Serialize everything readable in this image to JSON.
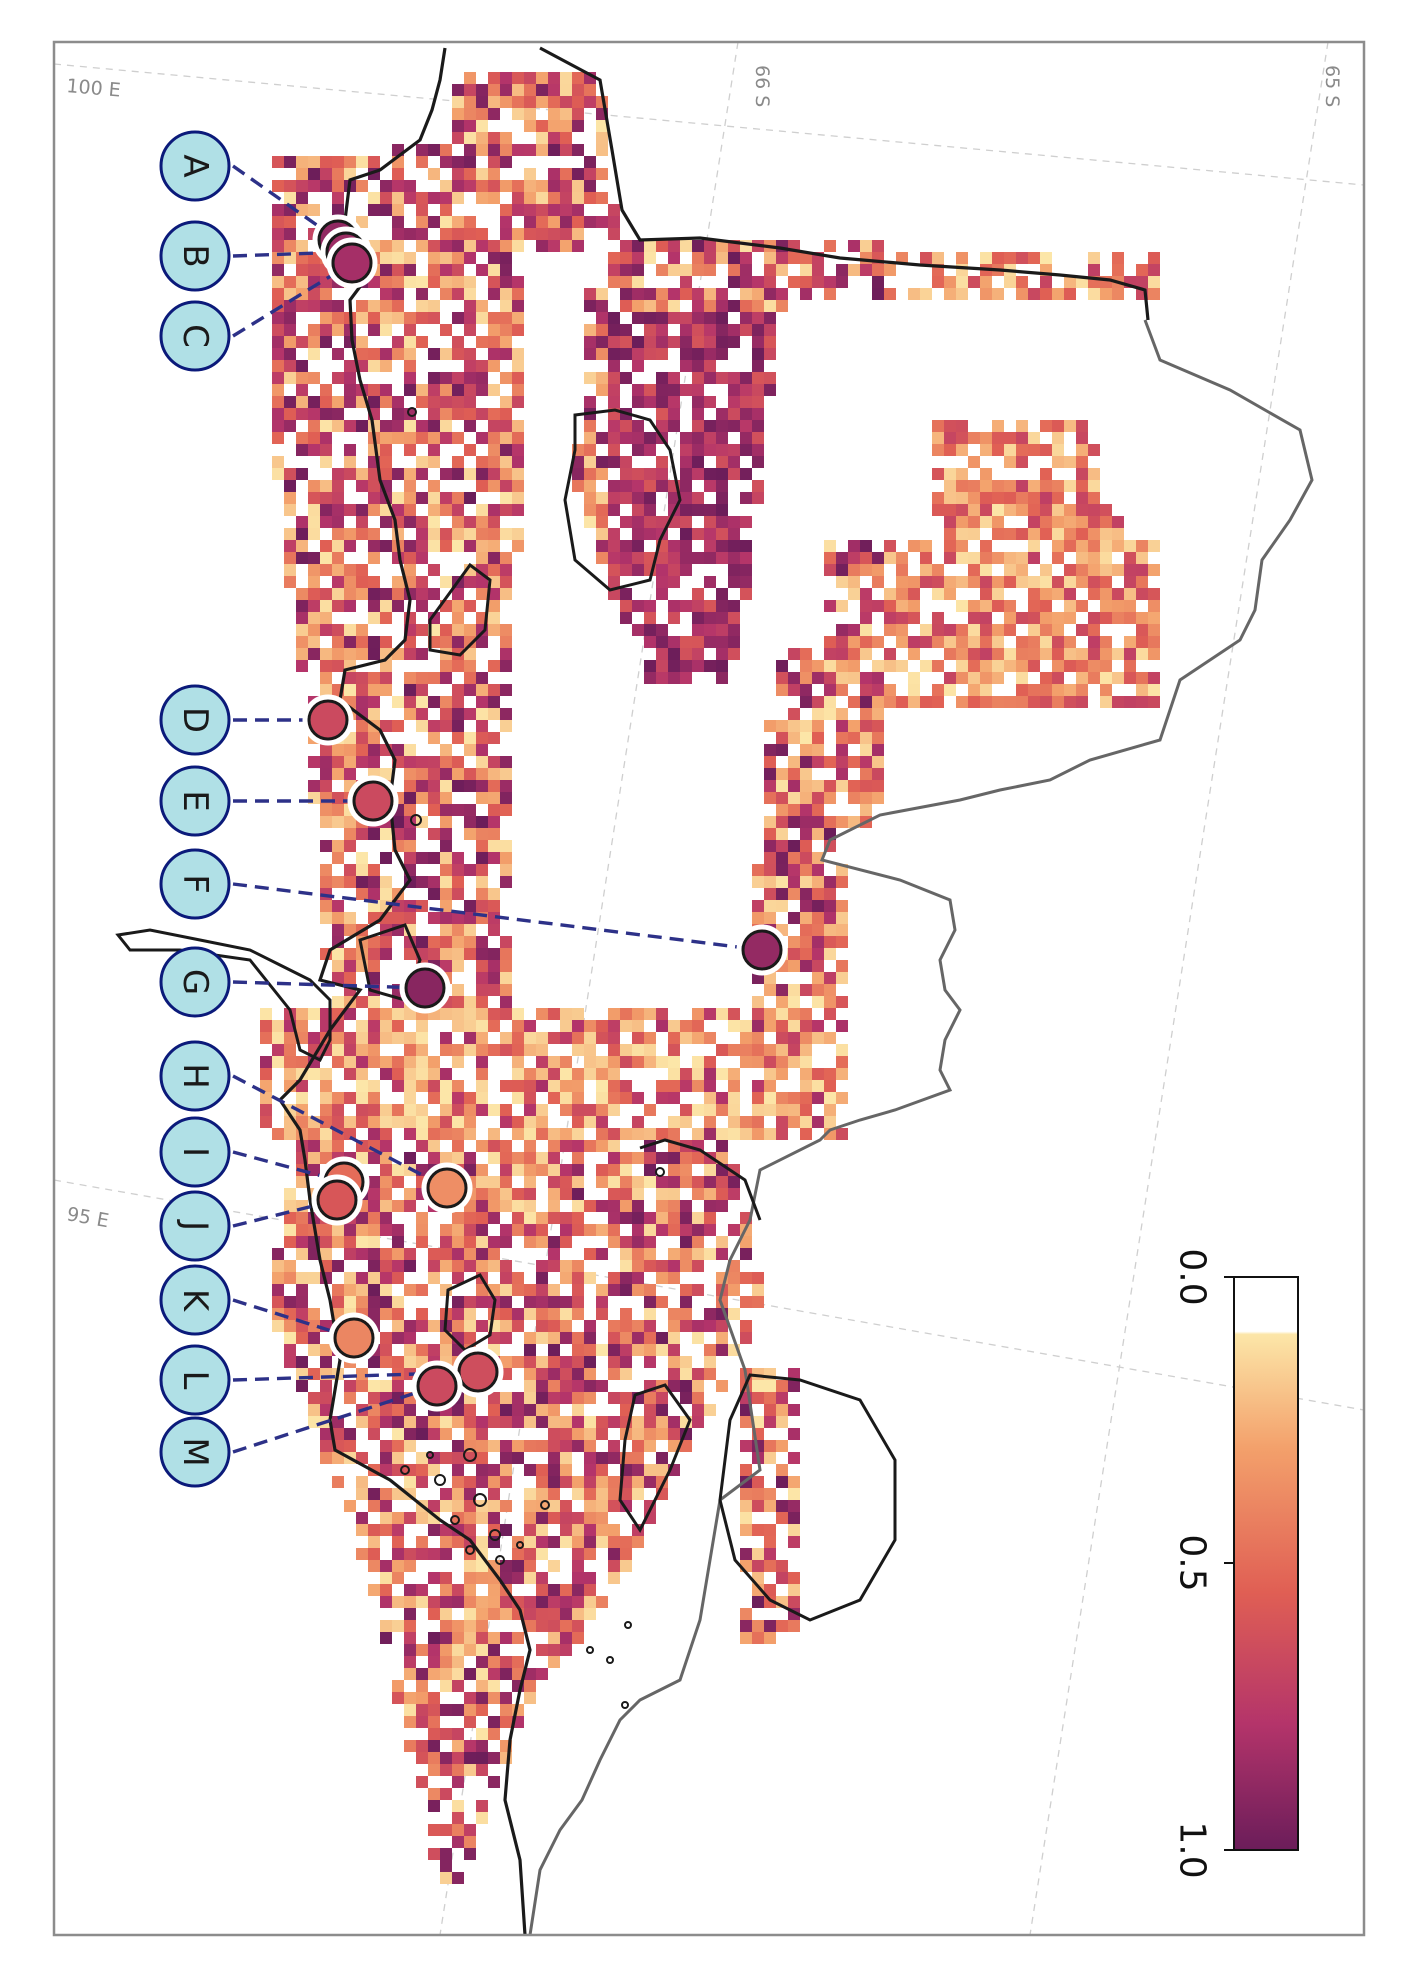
{
  "map": {
    "graticule_labels": [
      "100 E",
      "95 E",
      "66 S",
      "65 S"
    ],
    "colorbar": {
      "ticks": [
        "0.0",
        "0.5",
        "1.0"
      ],
      "stops": [
        "#ffffff",
        "#fce6a8",
        "#f3a06b",
        "#e05f54",
        "#b4346a",
        "#6b1d5a"
      ]
    },
    "sites": [
      {
        "label": "A",
        "value": 0.87
      },
      {
        "label": "B",
        "value": 0.83
      },
      {
        "label": "C",
        "value": 0.8
      },
      {
        "label": "D",
        "value": 0.62
      },
      {
        "label": "E",
        "value": 0.62
      },
      {
        "label": "F",
        "value": 0.86
      },
      {
        "label": "G",
        "value": 0.9
      },
      {
        "label": "H",
        "value": 0.32
      },
      {
        "label": "I",
        "value": 0.45
      },
      {
        "label": "J",
        "value": 0.55
      },
      {
        "label": "K",
        "value": 0.35
      },
      {
        "label": "L",
        "value": 0.6
      },
      {
        "label": "M",
        "value": 0.62
      }
    ],
    "colors": {
      "frame": "#8c8c8c",
      "coast": "#1a1a1a",
      "grounding": "#666666",
      "leader": "#2d3188",
      "badge_fill": "#b0e0e6",
      "badge_stroke": "#0b1a7a"
    }
  }
}
